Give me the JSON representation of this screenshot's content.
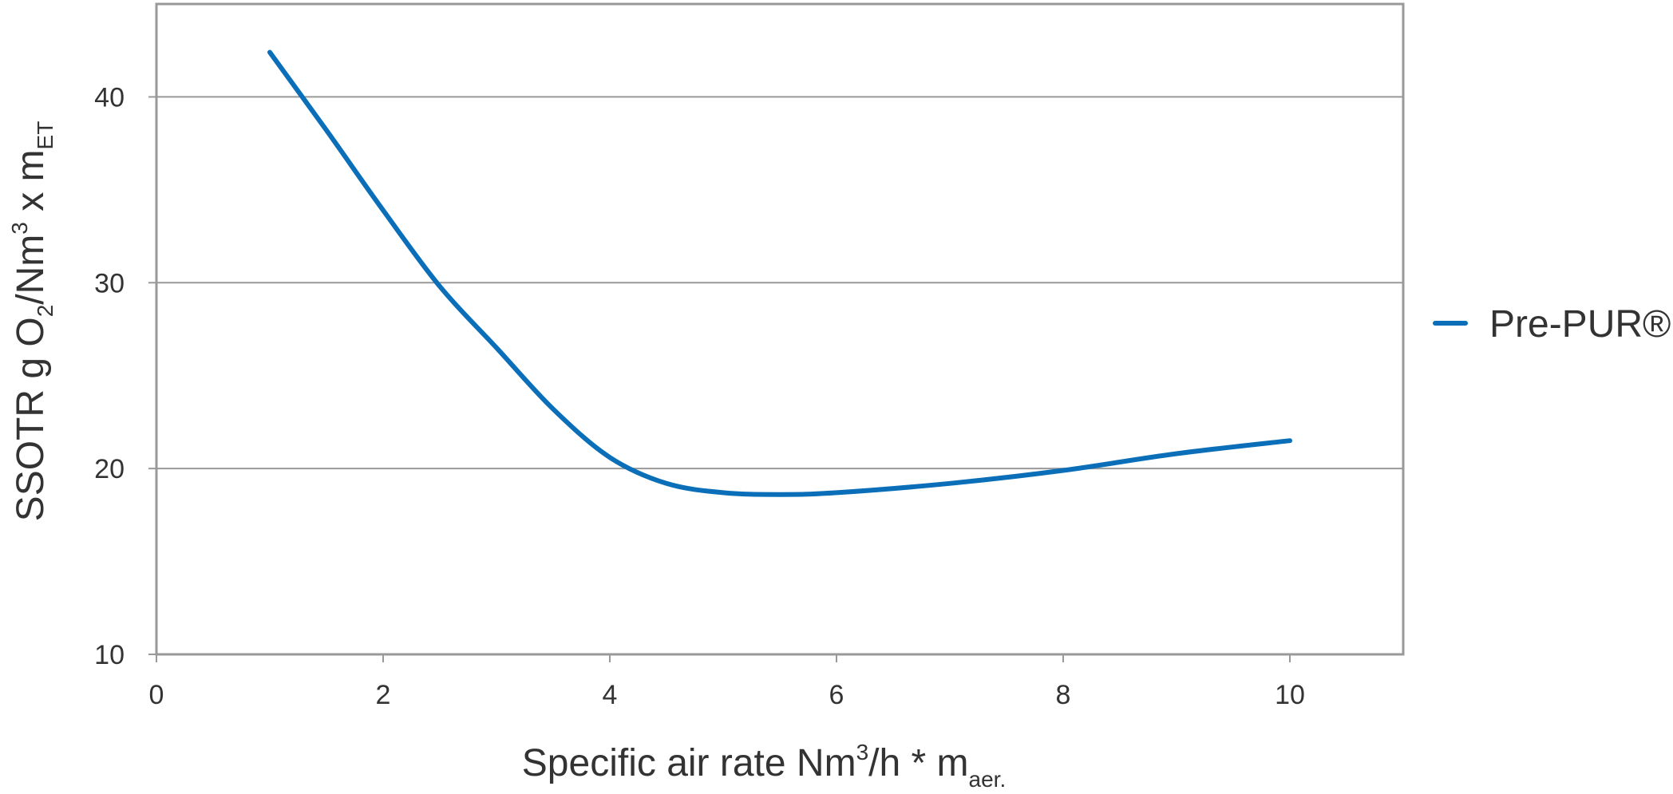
{
  "chart_data": {
    "type": "line",
    "title": "",
    "xlabel": {
      "main": "Specific air rate Nm",
      "sup": "3",
      "rest": "/h * m",
      "sub": "aer."
    },
    "ylabel": {
      "part1": "SSOTR g O",
      "sub1": "2",
      "part2": "/Nm",
      "sup1": "3",
      "part3": " x m",
      "sub2": "ET"
    },
    "xlim": [
      0,
      11
    ],
    "ylim": [
      10,
      45
    ],
    "x_ticks": [
      0,
      2,
      4,
      6,
      8,
      10
    ],
    "y_ticks": [
      10,
      20,
      30,
      40
    ],
    "grid": "horizontal",
    "legend_position": "right",
    "series": [
      {
        "name": "Pre-PUR®",
        "color": "#0a6fb8",
        "x": [
          1,
          1.5,
          2,
          2.5,
          3,
          3.5,
          4,
          4.5,
          5,
          5.5,
          6,
          7,
          8,
          9,
          10
        ],
        "y": [
          42.4,
          38.2,
          33.9,
          29.8,
          26.5,
          23.2,
          20.6,
          19.2,
          18.7,
          18.6,
          18.7,
          19.2,
          19.9,
          20.8,
          21.5
        ]
      }
    ],
    "colors": {
      "axis": "#999999",
      "grid": "#999999",
      "text": "#333333"
    }
  }
}
